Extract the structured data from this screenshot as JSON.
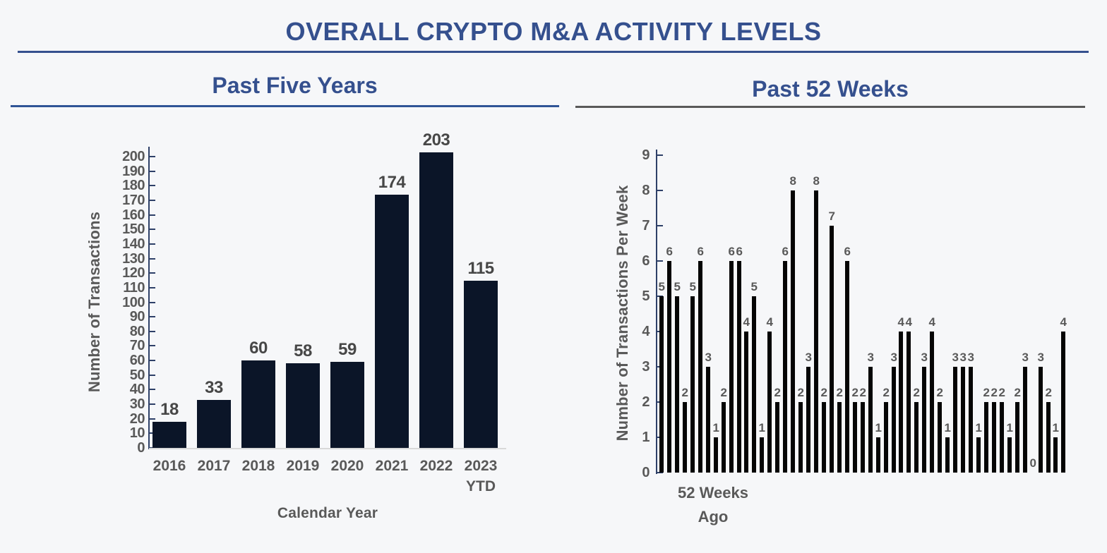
{
  "page": {
    "title": "OVERALL CRYPTO M&A ACTIVITY LEVELS",
    "accent_color": "#35508E",
    "background_color": "#F6F7F9"
  },
  "left_panel": {
    "subtitle": "Past Five Years",
    "underline_color": "#2F5496"
  },
  "right_panel": {
    "subtitle": "Past 52 Weeks",
    "underline_color": "#595959"
  },
  "chart_data": [
    {
      "type": "bar",
      "title": "Past Five Years",
      "categories": [
        "2016",
        "2017",
        "2018",
        "2019",
        "2020",
        "2021",
        "2022",
        "2023\nYTD"
      ],
      "values": [
        18,
        33,
        60,
        58,
        59,
        174,
        203,
        115
      ],
      "xlabel": "Calendar Year",
      "ylabel": "Number of Transactions",
      "ylim": [
        0,
        200
      ],
      "ytick_step": 10,
      "grid": false,
      "data_labels": true,
      "bar_color": "#0B1528",
      "axis_color": "#2E4068",
      "baseline_color": "#D9D9D9",
      "tick_label_color": "#595959",
      "value_label_color": "#474747"
    },
    {
      "type": "bar",
      "title": "Past 52 Weeks",
      "values": [
        5,
        6,
        5,
        2,
        5,
        6,
        3,
        1,
        2,
        6,
        6,
        4,
        5,
        1,
        4,
        2,
        6,
        8,
        2,
        3,
        8,
        2,
        7,
        2,
        6,
        2,
        2,
        3,
        1,
        2,
        3,
        4,
        4,
        2,
        3,
        4,
        2,
        1,
        3,
        3,
        3,
        1,
        2,
        2,
        2,
        1,
        2,
        3,
        0,
        3,
        2,
        1,
        4
      ],
      "x_annotation": "52 Weeks\nAgo",
      "ylabel": "Number of Transactions Per Week",
      "ylim": [
        0,
        9
      ],
      "ytick_step": 1,
      "grid": false,
      "data_labels": true,
      "bar_color": "#050505",
      "axis_color": "#2E4068",
      "tick_label_color": "#595959",
      "value_label_color": "#595959"
    }
  ]
}
